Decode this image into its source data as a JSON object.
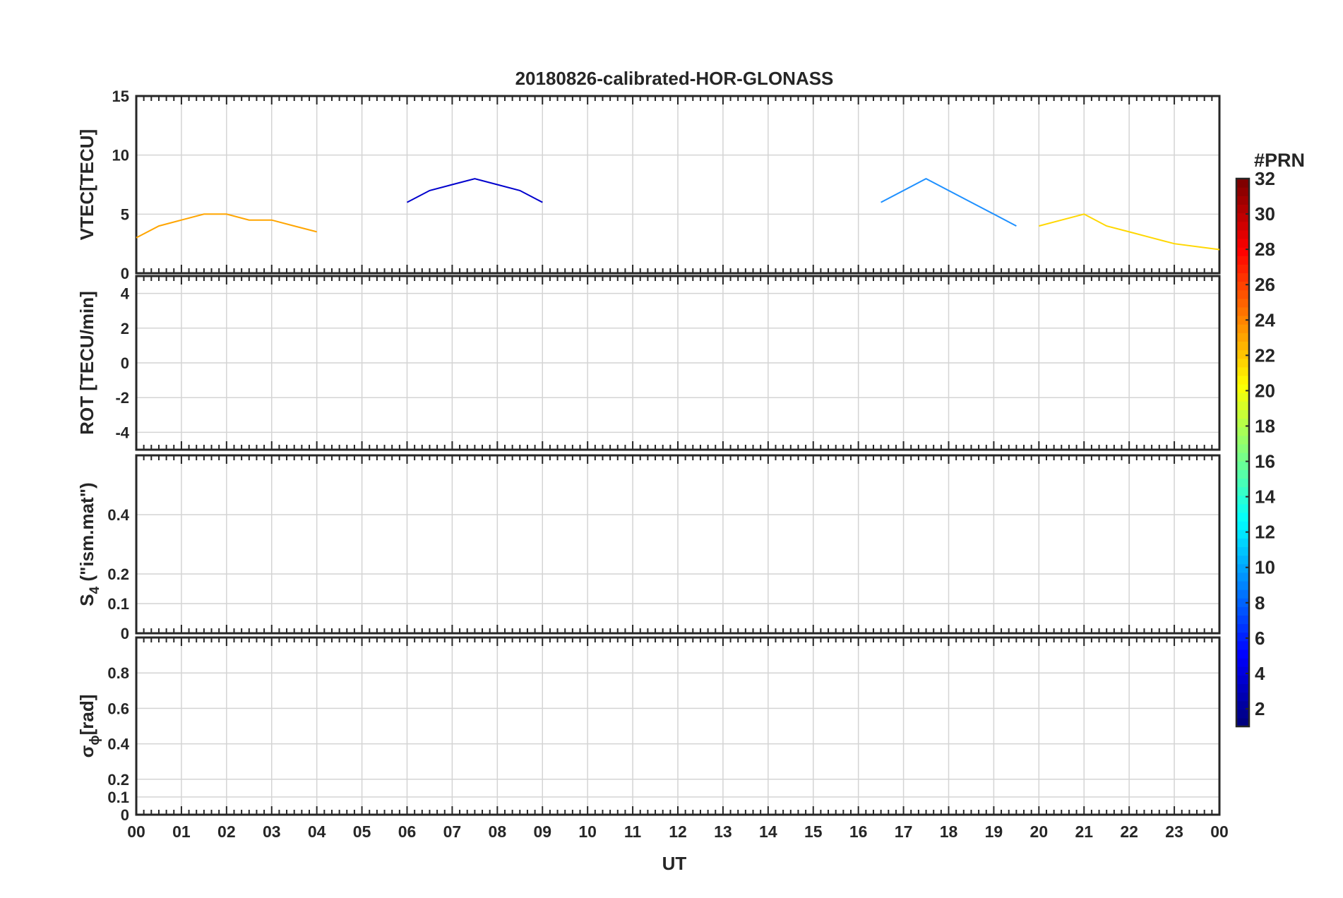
{
  "figure": {
    "title": "20180826-calibrated-HOR-GLONASS",
    "xlabel": "UT",
    "x_ticks": [
      "00",
      "01",
      "02",
      "03",
      "04",
      "05",
      "06",
      "07",
      "08",
      "09",
      "10",
      "11",
      "12",
      "13",
      "14",
      "15",
      "16",
      "17",
      "18",
      "19",
      "20",
      "21",
      "22",
      "23",
      "00"
    ]
  },
  "colorbar": {
    "label": "#PRN",
    "ticks": [
      "32",
      "30",
      "28",
      "26",
      "24",
      "22",
      "20",
      "18",
      "16",
      "14",
      "12",
      "10",
      "8",
      "6",
      "4",
      "2"
    ],
    "range": [
      1,
      32
    ],
    "colormap": "jet"
  },
  "chart_data": [
    {
      "type": "line",
      "panel": "VTEC",
      "ylabel": "VTEC[TECU]",
      "xlim": [
        0,
        24
      ],
      "ylim": [
        0,
        15
      ],
      "yticks": [
        "0",
        "5",
        "10",
        "15"
      ],
      "grid": true,
      "series": [
        {
          "prn": 21,
          "color": "#ffa500",
          "points": [
            [
              0,
              3
            ],
            [
              0.5,
              4
            ],
            [
              1,
              4.5
            ],
            [
              1.5,
              5
            ],
            [
              2,
              5
            ],
            [
              2.5,
              4.5
            ],
            [
              3,
              4.5
            ],
            [
              3.5,
              4
            ],
            [
              4,
              3.5
            ]
          ]
        },
        {
          "prn": 3,
          "color": "#0000cd",
          "points": [
            [
              6,
              6
            ],
            [
              6.5,
              7
            ],
            [
              7,
              7.5
            ],
            [
              7.5,
              8
            ],
            [
              8,
              7.5
            ],
            [
              8.5,
              7
            ],
            [
              9,
              6
            ]
          ]
        },
        {
          "prn": 10,
          "color": "#1e90ff",
          "points": [
            [
              16.5,
              6
            ],
            [
              17,
              7
            ],
            [
              17.5,
              8
            ],
            [
              18,
              7
            ],
            [
              18.5,
              6
            ],
            [
              19,
              5
            ],
            [
              19.5,
              4
            ]
          ]
        },
        {
          "prn": 20,
          "color": "#ffd700",
          "points": [
            [
              20,
              4
            ],
            [
              20.5,
              4.5
            ],
            [
              21,
              5
            ],
            [
              21.5,
              4
            ],
            [
              22,
              3.5
            ],
            [
              22.5,
              3
            ],
            [
              23,
              2.5
            ],
            [
              24,
              2
            ]
          ]
        }
      ]
    },
    {
      "type": "line",
      "panel": "ROT",
      "ylabel": "ROT [TECU/min]",
      "xlim": [
        0,
        24
      ],
      "ylim": [
        -5,
        5
      ],
      "yticks": [
        "-4",
        "-2",
        "0",
        "2",
        "4"
      ],
      "grid": true
    },
    {
      "type": "line",
      "panel": "S4",
      "ylabel": "S",
      "ylabel_sub": "4",
      "ylabel_rest": " (\"ism.mat\")",
      "xlim": [
        0,
        24
      ],
      "ylim": [
        0,
        0.6
      ],
      "yticks": [
        "0",
        "0.1",
        "0.2",
        "0.4"
      ],
      "grid": true
    },
    {
      "type": "line",
      "panel": "sigma_phi",
      "ylabel": "σ",
      "ylabel_sub": "ϕ",
      "ylabel_rest": "[rad]",
      "xlim": [
        0,
        24
      ],
      "ylim": [
        0,
        1
      ],
      "yticks": [
        "0",
        "0.1",
        "0.2",
        "0.4",
        "0.6",
        "0.8"
      ],
      "grid": true
    }
  ]
}
